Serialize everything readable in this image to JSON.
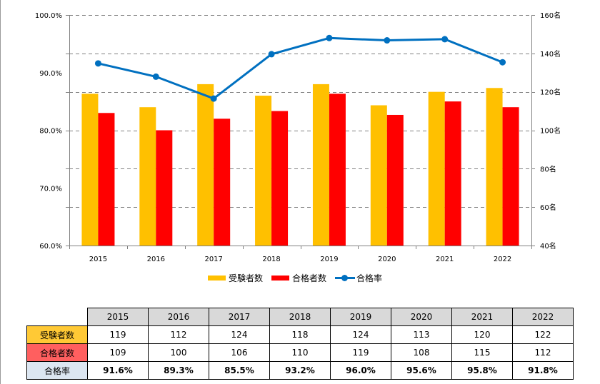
{
  "colors": {
    "applicants": "#FFC000",
    "passers": "#FF0000",
    "pass_rate": "#0070C0",
    "grid": "#808080",
    "header_bg": "#D9D9D9",
    "label_applicants_bg": "#FFC935",
    "label_passers_bg": "#FF5F5F",
    "label_rate_bg": "#DCE6F1"
  },
  "chart_data": {
    "type": "bar",
    "combo": "bar+line (dual axis)",
    "categories": [
      "2015",
      "2016",
      "2017",
      "2018",
      "2019",
      "2020",
      "2021",
      "2022"
    ],
    "series": [
      {
        "name": "受験者数",
        "type": "bar",
        "axis": "right",
        "values": [
          119,
          112,
          124,
          118,
          124,
          113,
          120,
          122
        ]
      },
      {
        "name": "合格者数",
        "type": "bar",
        "axis": "right",
        "values": [
          109,
          100,
          106,
          110,
          119,
          108,
          115,
          112
        ]
      },
      {
        "name": "合格率",
        "type": "line",
        "axis": "left",
        "values": [
          91.6,
          89.3,
          85.5,
          93.2,
          96.0,
          95.6,
          95.8,
          91.8
        ]
      }
    ],
    "title": "",
    "xlabel": "",
    "ylabel_left": "",
    "ylabel_right": "",
    "ylim_left": [
      60,
      100
    ],
    "ylim_right": [
      40,
      160
    ],
    "left_ticks": [
      "100.0%",
      "90.0%",
      "80.0%",
      "70.0%",
      "60.0%"
    ],
    "left_tick_values": [
      100,
      90,
      80,
      70,
      60
    ],
    "right_ticks": [
      "160名",
      "140名",
      "120名",
      "100名",
      "80名",
      "60名",
      "40名"
    ],
    "right_tick_values": [
      160,
      140,
      120,
      100,
      80,
      60,
      40
    ],
    "grid": "horizontal dashed",
    "legend": [
      "受験者数",
      "合格者数",
      "合格率"
    ],
    "legend_position": "bottom"
  },
  "legend": {
    "items": [
      {
        "label": "受験者数",
        "kind": "bar-swatch"
      },
      {
        "label": "合格者数",
        "kind": "bar-swatch"
      },
      {
        "label": "合格率",
        "kind": "line-marker"
      }
    ]
  },
  "table": {
    "headers": [
      "2015",
      "2016",
      "2017",
      "2018",
      "2019",
      "2020",
      "2021",
      "2022"
    ],
    "rows": [
      {
        "label": "受験者数",
        "values": [
          "119",
          "112",
          "124",
          "118",
          "124",
          "113",
          "120",
          "122"
        ]
      },
      {
        "label": "合格者数",
        "values": [
          "109",
          "100",
          "106",
          "110",
          "119",
          "108",
          "115",
          "112"
        ]
      },
      {
        "label": "合格率",
        "values": [
          "91.6%",
          "89.3%",
          "85.5%",
          "93.2%",
          "96.0%",
          "95.6%",
          "95.8%",
          "91.8%"
        ]
      }
    ]
  }
}
